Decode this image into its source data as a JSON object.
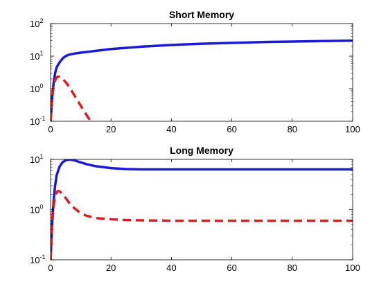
{
  "chart_data": [
    {
      "type": "line",
      "title": "Short Memory",
      "xlabel": "",
      "ylabel": "",
      "xlim": [
        0,
        100
      ],
      "ylim": [
        0.1,
        100
      ],
      "yscale": "log",
      "grid": false,
      "x_ticks": [
        "0",
        "20",
        "40",
        "60",
        "80",
        "100"
      ],
      "y_ticks": [
        {
          "base": "10",
          "exp": "-1"
        },
        {
          "base": "10",
          "exp": "0"
        },
        {
          "base": "10",
          "exp": "1"
        },
        {
          "base": "10",
          "exp": "2"
        }
      ],
      "series": [
        {
          "color": "#1a1ad6",
          "style": "solid",
          "x": [
            0,
            0.5,
            1,
            1.5,
            2,
            3,
            4,
            5,
            6,
            8,
            10,
            15,
            20,
            30,
            40,
            50,
            60,
            70,
            80,
            90,
            100
          ],
          "y": [
            0.1,
            0.5,
            1.5,
            3.0,
            4.5,
            6.5,
            8.5,
            10,
            11,
            12,
            12.8,
            14.5,
            16.5,
            19.5,
            22,
            24,
            25.5,
            27,
            28,
            29,
            30
          ]
        },
        {
          "color": "#e31a1c",
          "style": "dashed",
          "x": [
            0,
            0.5,
            1,
            1.5,
            2,
            2.5,
            3,
            4,
            5,
            6,
            7,
            8,
            9,
            10,
            11,
            12,
            13,
            13.5
          ],
          "y": [
            0.1,
            0.5,
            1.2,
            1.8,
            2.2,
            2.35,
            2.3,
            2.0,
            1.6,
            1.2,
            0.85,
            0.6,
            0.42,
            0.3,
            0.21,
            0.15,
            0.11,
            0.1
          ]
        }
      ]
    },
    {
      "type": "line",
      "title": "Long Memory",
      "xlabel": "",
      "ylabel": "",
      "xlim": [
        0,
        100
      ],
      "ylim": [
        0.1,
        10
      ],
      "yscale": "log",
      "grid": false,
      "x_ticks": [
        "0",
        "20",
        "40",
        "60",
        "80",
        "100"
      ],
      "y_ticks": [
        {
          "base": "10",
          "exp": "-1"
        },
        {
          "base": "10",
          "exp": "0"
        },
        {
          "base": "10",
          "exp": "1"
        }
      ],
      "series": [
        {
          "color": "#1a1ad6",
          "style": "solid",
          "x": [
            0,
            0.5,
            1,
            1.5,
            2,
            3,
            4,
            5,
            6,
            7,
            8,
            10,
            12,
            15,
            20,
            25,
            30,
            40,
            50,
            60,
            70,
            80,
            90,
            100
          ],
          "y": [
            0.1,
            0.5,
            1.5,
            3.0,
            4.8,
            7.2,
            8.8,
            9.6,
            9.9,
            9.8,
            9.5,
            8.7,
            8.0,
            7.3,
            6.7,
            6.4,
            6.3,
            6.3,
            6.3,
            6.3,
            6.3,
            6.3,
            6.3,
            6.3
          ]
        },
        {
          "color": "#e31a1c",
          "style": "dashed",
          "x": [
            0,
            0.5,
            1,
            1.5,
            2,
            2.5,
            3,
            4,
            5,
            6,
            7,
            8,
            10,
            12,
            15,
            20,
            25,
            30,
            40,
            50,
            60,
            70,
            80,
            90,
            100
          ],
          "y": [
            0.1,
            0.5,
            1.2,
            1.8,
            2.2,
            2.35,
            2.3,
            2.0,
            1.7,
            1.4,
            1.2,
            1.05,
            0.85,
            0.75,
            0.68,
            0.64,
            0.62,
            0.61,
            0.6,
            0.6,
            0.6,
            0.6,
            0.6,
            0.6,
            0.6
          ]
        }
      ]
    }
  ]
}
